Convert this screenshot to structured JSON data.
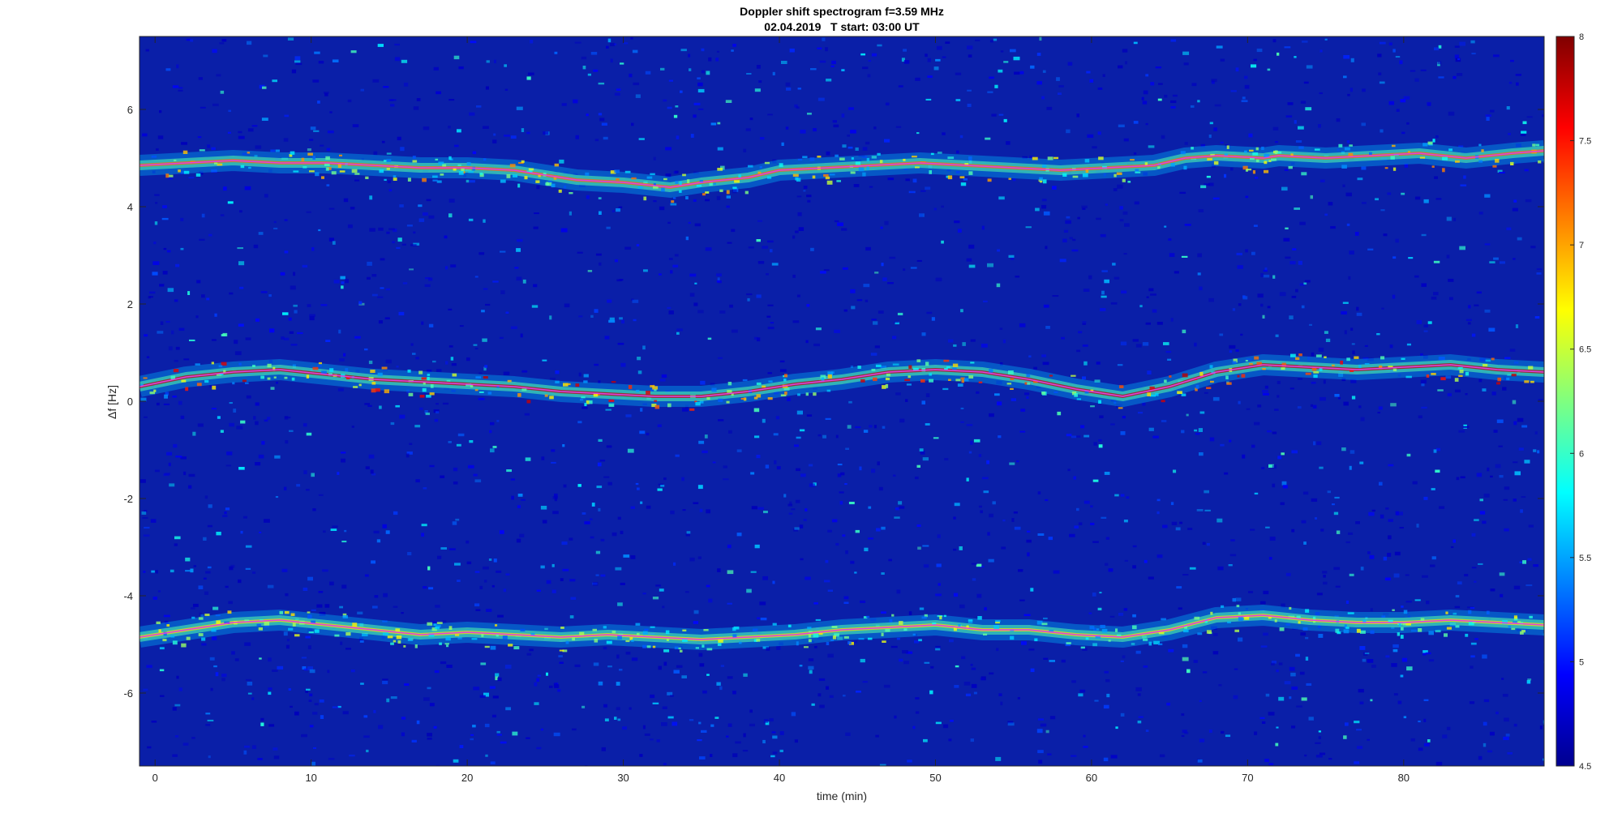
{
  "chart_data": {
    "type": "heatmap",
    "title": "Doppler shift spectrogram f=3.59 MHz",
    "subtitle": "02.04.2019   T start: 03:00 UT",
    "xlabel": "time (min)",
    "ylabel": "Δf [Hz]",
    "xlim": [
      -1,
      89
    ],
    "ylim": [
      -7.5,
      7.5
    ],
    "x_ticks": [
      0,
      10,
      20,
      30,
      40,
      50,
      60,
      70,
      80
    ],
    "y_ticks": [
      -6,
      -4,
      -2,
      0,
      2,
      4,
      6
    ],
    "colorbar": {
      "range": [
        4.5,
        8
      ],
      "ticks": [
        4.5,
        5,
        5.5,
        6,
        6.5,
        7,
        7.5,
        8
      ],
      "colormap": "jet"
    },
    "background_color": "#0a1fa8",
    "trace_color": "#e040e0",
    "series": [
      {
        "x": [
          -1,
          2,
          5,
          8,
          11,
          14,
          17,
          20,
          23,
          25,
          27,
          30,
          33,
          35,
          38,
          40,
          43,
          46,
          49,
          52,
          55,
          58,
          61,
          64,
          66,
          68,
          71,
          72,
          75,
          78,
          81,
          84,
          87,
          89
        ],
        "values": [
          4.85,
          4.9,
          4.95,
          4.9,
          4.9,
          4.85,
          4.8,
          4.8,
          4.75,
          4.65,
          4.55,
          4.5,
          4.4,
          4.5,
          4.6,
          4.75,
          4.8,
          4.85,
          4.9,
          4.85,
          4.8,
          4.75,
          4.8,
          4.85,
          5.0,
          5.05,
          5.0,
          5.05,
          5.0,
          5.05,
          5.1,
          5.0,
          5.1,
          5.15
        ],
        "intensity": 7.2
      },
      {
        "x": [
          -1,
          2,
          5,
          8,
          11,
          14,
          17,
          20,
          23,
          26,
          29,
          32,
          35,
          38,
          41,
          44,
          47,
          50,
          53,
          56,
          59,
          62,
          65,
          68,
          71,
          74,
          77,
          80,
          83,
          86,
          89
        ],
        "values": [
          0.3,
          0.5,
          0.6,
          0.65,
          0.55,
          0.45,
          0.4,
          0.35,
          0.3,
          0.2,
          0.15,
          0.1,
          0.1,
          0.2,
          0.35,
          0.45,
          0.6,
          0.65,
          0.6,
          0.45,
          0.25,
          0.1,
          0.3,
          0.6,
          0.75,
          0.7,
          0.65,
          0.7,
          0.75,
          0.65,
          0.6
        ],
        "intensity": 7.8
      },
      {
        "x": [
          -1,
          2,
          5,
          8,
          11,
          14,
          17,
          20,
          23,
          26,
          29,
          32,
          35,
          38,
          41,
          44,
          47,
          50,
          53,
          56,
          59,
          62,
          65,
          68,
          71,
          74,
          77,
          80,
          83,
          86,
          89
        ],
        "values": [
          -4.85,
          -4.7,
          -4.55,
          -4.5,
          -4.6,
          -4.7,
          -4.8,
          -4.75,
          -4.8,
          -4.85,
          -4.8,
          -4.85,
          -4.9,
          -4.85,
          -4.8,
          -4.7,
          -4.65,
          -4.6,
          -4.7,
          -4.7,
          -4.8,
          -4.85,
          -4.7,
          -4.45,
          -4.4,
          -4.5,
          -4.55,
          -4.55,
          -4.5,
          -4.55,
          -4.6
        ],
        "intensity": 6.8
      }
    ]
  }
}
